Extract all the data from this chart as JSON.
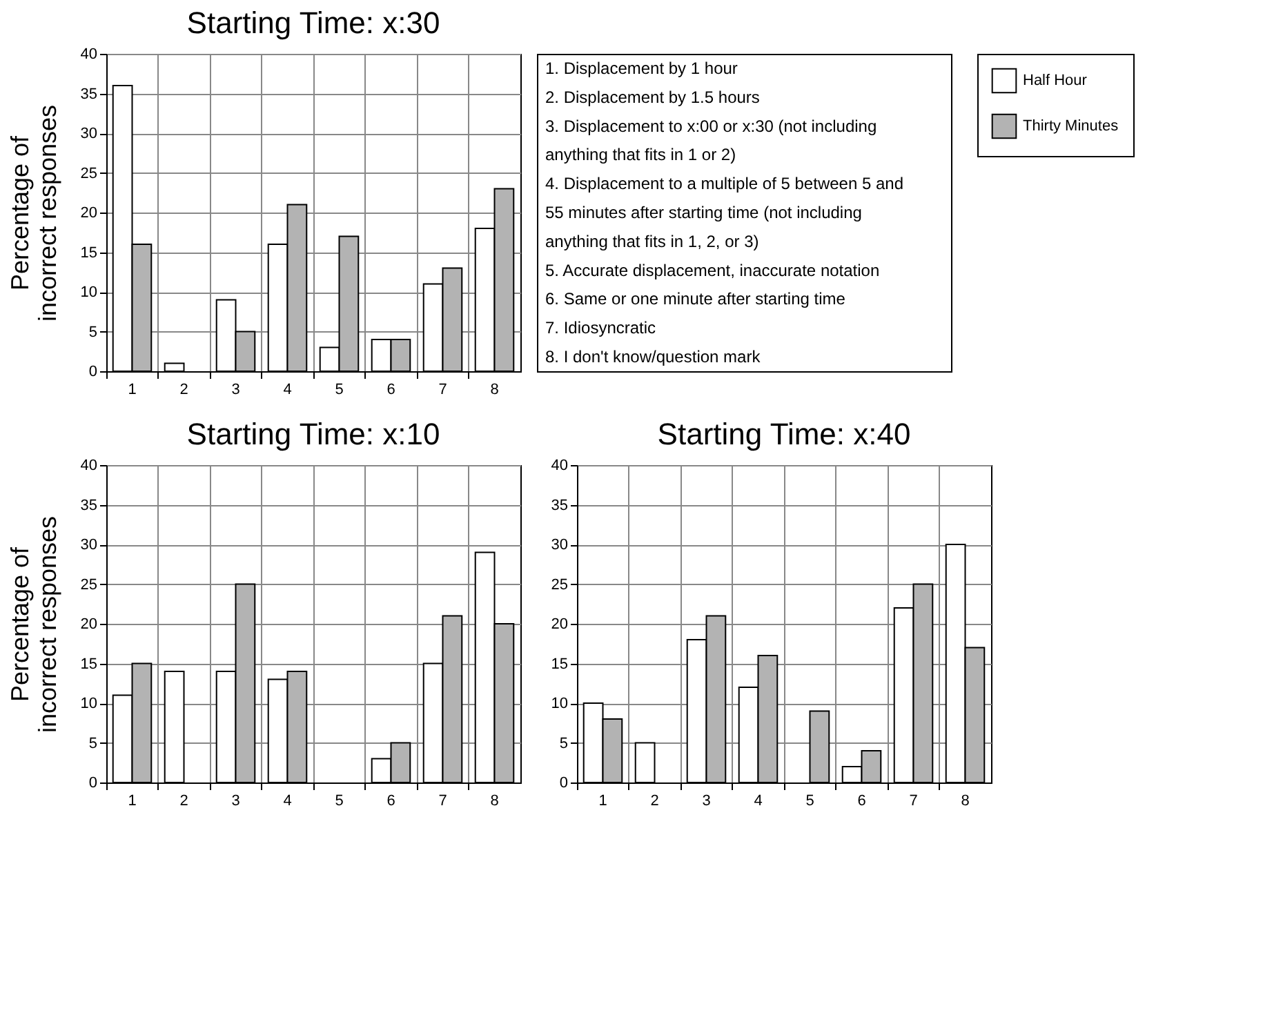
{
  "chart_data": [
    {
      "type": "bar",
      "title": "Starting Time: x:30",
      "ylabel": "Percentage of incorrect responses",
      "categories": [
        "1",
        "2",
        "3",
        "4",
        "5",
        "6",
        "7",
        "8"
      ],
      "series": [
        {
          "name": "Half Hour",
          "color": "#ffffff",
          "values": [
            36,
            1,
            9,
            16,
            3,
            4,
            11,
            18
          ]
        },
        {
          "name": "Thirty Minutes",
          "color": "#b3b3b3",
          "values": [
            16,
            null,
            5,
            21,
            17,
            4,
            13,
            23
          ]
        }
      ],
      "ylim": [
        0,
        40
      ],
      "yticks": [
        0,
        5,
        10,
        15,
        20,
        25,
        30,
        35,
        40
      ],
      "grid": true,
      "legend": "right"
    },
    {
      "type": "other",
      "annotations": [
        "1. Displacement by 1 hour",
        "2. Displacement by 1.5 hours",
        "3. Displacement to x:00 or x:30 (not including anything that fits in 1 or 2)",
        "4. Displacement to a multiple of 5 between 5 and 55 minutes after starting time (not including anything that fits in 1, 2, or 3)",
        "5. Accurate displacement, inaccurate notation",
        "6. Same or one minute after starting time",
        "7. Idiosyncratic",
        "8. I don't know/question mark"
      ]
    },
    {
      "type": "bar",
      "title": "Starting Time: x:10",
      "ylabel": "Percentage of incorrect responses",
      "categories": [
        "1",
        "2",
        "3",
        "4",
        "5",
        "6",
        "7",
        "8"
      ],
      "series": [
        {
          "color": "#ffffff",
          "values": [
            11,
            14,
            14,
            13,
            null,
            3,
            15,
            29
          ]
        },
        {
          "color": "#b3b3b3",
          "values": [
            15,
            null,
            25,
            14,
            null,
            5,
            21,
            20
          ]
        }
      ],
      "ylim": [
        0,
        40
      ],
      "yticks": [
        0,
        5,
        10,
        15,
        20,
        25,
        30,
        35,
        40
      ],
      "grid": true
    },
    {
      "type": "bar",
      "title": "Starting Time: x:40",
      "categories": [
        "1",
        "2",
        "3",
        "4",
        "5",
        "6",
        "7",
        "8"
      ],
      "series": [
        {
          "color": "#ffffff",
          "values": [
            10,
            5,
            18,
            12,
            null,
            2,
            22,
            30
          ]
        },
        {
          "color": "#b3b3b3",
          "values": [
            8,
            null,
            21,
            16,
            9,
            4,
            25,
            17
          ]
        }
      ],
      "ylim": [
        0,
        40
      ],
      "yticks": [
        0,
        5,
        10,
        15,
        20,
        25,
        30,
        35,
        40
      ],
      "grid": true
    }
  ]
}
